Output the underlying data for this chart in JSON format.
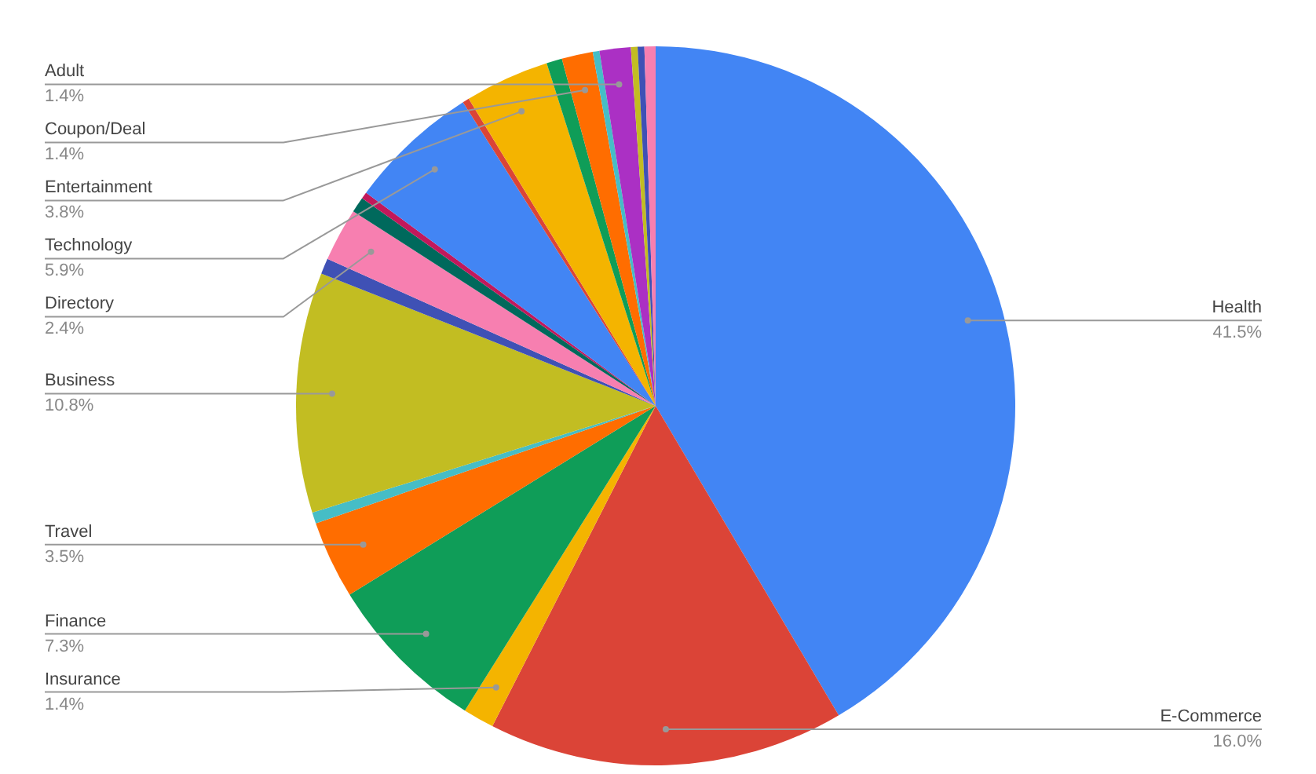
{
  "chart_data": {
    "type": "pie",
    "categories": [
      "Health",
      "E-Commerce",
      "Insurance",
      "Finance",
      "Travel",
      null,
      "Business",
      null,
      "Directory",
      null,
      null,
      "Technology",
      null,
      "Entertainment",
      null,
      "Coupon/Deal",
      null,
      "Adult",
      null,
      null,
      null
    ],
    "values": [
      41.5,
      16.0,
      1.4,
      7.3,
      3.5,
      0.5,
      10.8,
      0.7,
      2.4,
      0.7,
      0.3,
      5.9,
      0.3,
      3.8,
      0.7,
      1.4,
      0.3,
      1.4,
      0.3,
      0.3,
      0.5
    ],
    "colors": [
      "#4285f4",
      "#db4437",
      "#f4b400",
      "#0f9d58",
      "#ff6d00",
      "#46bdc6",
      "#c2bd22",
      "#3f51b5",
      "#f77fb0",
      "#00695c",
      "#c2185b",
      "#4285f4",
      "#db4437",
      "#f4b400",
      "#0f9d58",
      "#ff6d00",
      "#46bdc6",
      "#ab30c4",
      "#c2bd22",
      "#3f51b5",
      "#f77fb0"
    ],
    "value_labels": [
      "41.5%",
      "16.0%",
      "1.4%",
      "7.3%",
      "3.5%",
      null,
      "10.8%",
      null,
      "2.4%",
      null,
      null,
      "5.9%",
      null,
      "3.8%",
      null,
      "1.4%",
      null,
      "1.4%",
      null,
      null,
      null
    ]
  }
}
